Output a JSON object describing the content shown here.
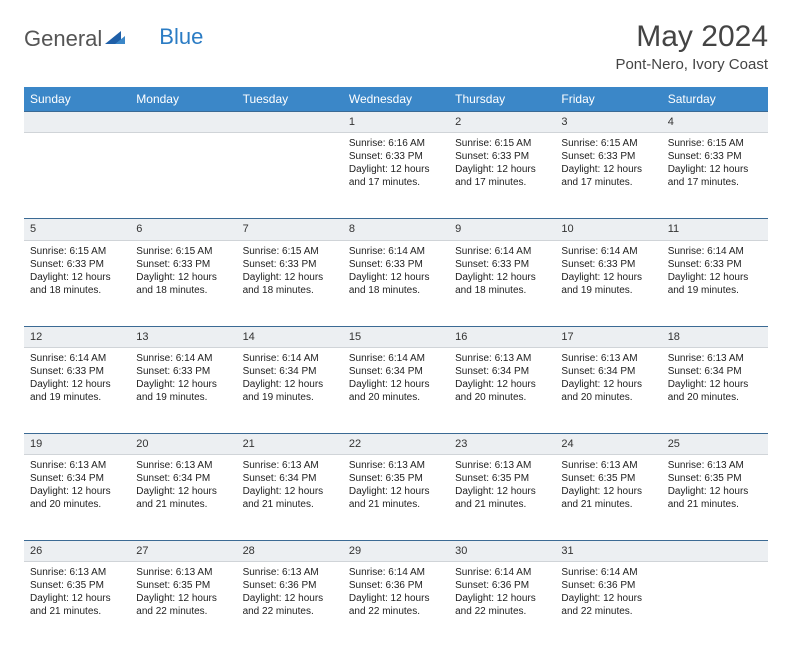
{
  "logo": {
    "text1": "General",
    "text2": "Blue"
  },
  "title": "May 2024",
  "location": "Pont-Nero, Ivory Coast",
  "header_bg": "#3b87c8",
  "daynum_bg": "#eceff2",
  "daynum_border_top": "#3b6a94",
  "weekdays": [
    "Sunday",
    "Monday",
    "Tuesday",
    "Wednesday",
    "Thursday",
    "Friday",
    "Saturday"
  ],
  "weeks": [
    [
      null,
      null,
      null,
      {
        "n": "1",
        "sr": "6:16 AM",
        "ss": "6:33 PM",
        "dl": "12 hours and 17 minutes."
      },
      {
        "n": "2",
        "sr": "6:15 AM",
        "ss": "6:33 PM",
        "dl": "12 hours and 17 minutes."
      },
      {
        "n": "3",
        "sr": "6:15 AM",
        "ss": "6:33 PM",
        "dl": "12 hours and 17 minutes."
      },
      {
        "n": "4",
        "sr": "6:15 AM",
        "ss": "6:33 PM",
        "dl": "12 hours and 17 minutes."
      }
    ],
    [
      {
        "n": "5",
        "sr": "6:15 AM",
        "ss": "6:33 PM",
        "dl": "12 hours and 18 minutes."
      },
      {
        "n": "6",
        "sr": "6:15 AM",
        "ss": "6:33 PM",
        "dl": "12 hours and 18 minutes."
      },
      {
        "n": "7",
        "sr": "6:15 AM",
        "ss": "6:33 PM",
        "dl": "12 hours and 18 minutes."
      },
      {
        "n": "8",
        "sr": "6:14 AM",
        "ss": "6:33 PM",
        "dl": "12 hours and 18 minutes."
      },
      {
        "n": "9",
        "sr": "6:14 AM",
        "ss": "6:33 PM",
        "dl": "12 hours and 18 minutes."
      },
      {
        "n": "10",
        "sr": "6:14 AM",
        "ss": "6:33 PM",
        "dl": "12 hours and 19 minutes."
      },
      {
        "n": "11",
        "sr": "6:14 AM",
        "ss": "6:33 PM",
        "dl": "12 hours and 19 minutes."
      }
    ],
    [
      {
        "n": "12",
        "sr": "6:14 AM",
        "ss": "6:33 PM",
        "dl": "12 hours and 19 minutes."
      },
      {
        "n": "13",
        "sr": "6:14 AM",
        "ss": "6:33 PM",
        "dl": "12 hours and 19 minutes."
      },
      {
        "n": "14",
        "sr": "6:14 AM",
        "ss": "6:34 PM",
        "dl": "12 hours and 19 minutes."
      },
      {
        "n": "15",
        "sr": "6:14 AM",
        "ss": "6:34 PM",
        "dl": "12 hours and 20 minutes."
      },
      {
        "n": "16",
        "sr": "6:13 AM",
        "ss": "6:34 PM",
        "dl": "12 hours and 20 minutes."
      },
      {
        "n": "17",
        "sr": "6:13 AM",
        "ss": "6:34 PM",
        "dl": "12 hours and 20 minutes."
      },
      {
        "n": "18",
        "sr": "6:13 AM",
        "ss": "6:34 PM",
        "dl": "12 hours and 20 minutes."
      }
    ],
    [
      {
        "n": "19",
        "sr": "6:13 AM",
        "ss": "6:34 PM",
        "dl": "12 hours and 20 minutes."
      },
      {
        "n": "20",
        "sr": "6:13 AM",
        "ss": "6:34 PM",
        "dl": "12 hours and 21 minutes."
      },
      {
        "n": "21",
        "sr": "6:13 AM",
        "ss": "6:34 PM",
        "dl": "12 hours and 21 minutes."
      },
      {
        "n": "22",
        "sr": "6:13 AM",
        "ss": "6:35 PM",
        "dl": "12 hours and 21 minutes."
      },
      {
        "n": "23",
        "sr": "6:13 AM",
        "ss": "6:35 PM",
        "dl": "12 hours and 21 minutes."
      },
      {
        "n": "24",
        "sr": "6:13 AM",
        "ss": "6:35 PM",
        "dl": "12 hours and 21 minutes."
      },
      {
        "n": "25",
        "sr": "6:13 AM",
        "ss": "6:35 PM",
        "dl": "12 hours and 21 minutes."
      }
    ],
    [
      {
        "n": "26",
        "sr": "6:13 AM",
        "ss": "6:35 PM",
        "dl": "12 hours and 21 minutes."
      },
      {
        "n": "27",
        "sr": "6:13 AM",
        "ss": "6:35 PM",
        "dl": "12 hours and 22 minutes."
      },
      {
        "n": "28",
        "sr": "6:13 AM",
        "ss": "6:36 PM",
        "dl": "12 hours and 22 minutes."
      },
      {
        "n": "29",
        "sr": "6:14 AM",
        "ss": "6:36 PM",
        "dl": "12 hours and 22 minutes."
      },
      {
        "n": "30",
        "sr": "6:14 AM",
        "ss": "6:36 PM",
        "dl": "12 hours and 22 minutes."
      },
      {
        "n": "31",
        "sr": "6:14 AM",
        "ss": "6:36 PM",
        "dl": "12 hours and 22 minutes."
      },
      null
    ]
  ],
  "labels": {
    "sunrise": "Sunrise:",
    "sunset": "Sunset:",
    "daylight": "Daylight:"
  }
}
